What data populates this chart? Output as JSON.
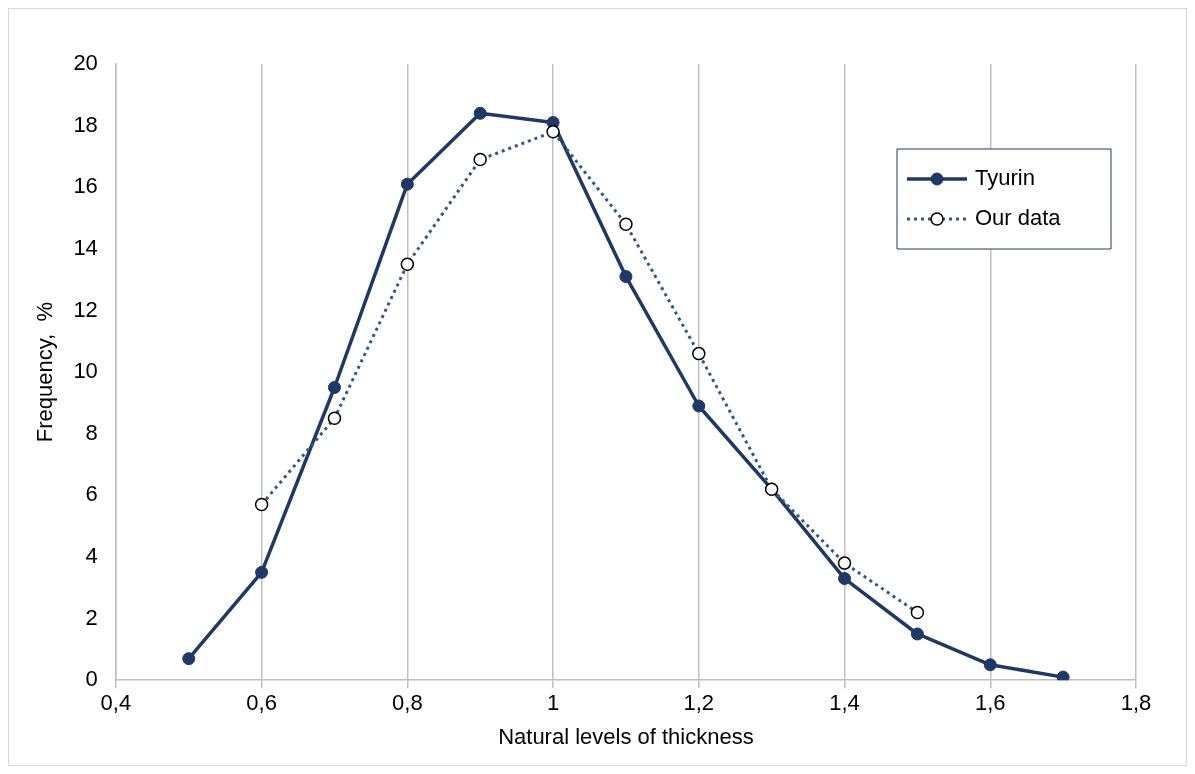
{
  "chart_data": {
    "type": "line",
    "xlabel": "Natural levels of thickness",
    "ylabel": "Frequency,  %",
    "xlim": [
      0.4,
      1.8
    ],
    "xticks": [
      {
        "value": 0.4,
        "label": "0,4"
      },
      {
        "value": 0.6,
        "label": "0,6"
      },
      {
        "value": 0.8,
        "label": "0,8"
      },
      {
        "value": 1,
        "label": "1"
      },
      {
        "value": 1.2,
        "label": "1,2"
      },
      {
        "value": 1.4,
        "label": "1,4"
      },
      {
        "value": 1.6,
        "label": "1,6"
      },
      {
        "value": 1.8,
        "label": "1,8"
      }
    ],
    "ylim": [
      0,
      20
    ],
    "yticks": [
      0,
      2,
      4,
      6,
      8,
      10,
      12,
      14,
      16,
      18,
      20
    ],
    "grid": "x",
    "legend": "top right",
    "series": [
      {
        "name": "Tyurin",
        "color": "#203864",
        "marker": "circle",
        "line_style": "solid",
        "x": [
          0.5,
          0.6,
          0.7,
          0.8,
          0.9,
          1,
          1.1,
          1.2,
          1.3,
          1.4,
          1.5,
          1.6,
          1.7
        ],
        "values": [
          0.7,
          3.5,
          9.5,
          16.1,
          18.4,
          18.1,
          13.1,
          8.9,
          6.2,
          3.3,
          1.5,
          0.5,
          0.1
        ]
      },
      {
        "name": "Our data",
        "color": "#2e5a87",
        "marker": "circle",
        "line_style": "dotted",
        "x": [
          0.6,
          0.7,
          0.8,
          0.9,
          1,
          1.1,
          1.2,
          1.3,
          1.4,
          1.5
        ],
        "values": [
          5.7,
          8.5,
          13.5,
          16.9,
          17.8,
          14.8,
          10.6,
          6.2,
          3.8,
          2.2
        ]
      }
    ]
  }
}
